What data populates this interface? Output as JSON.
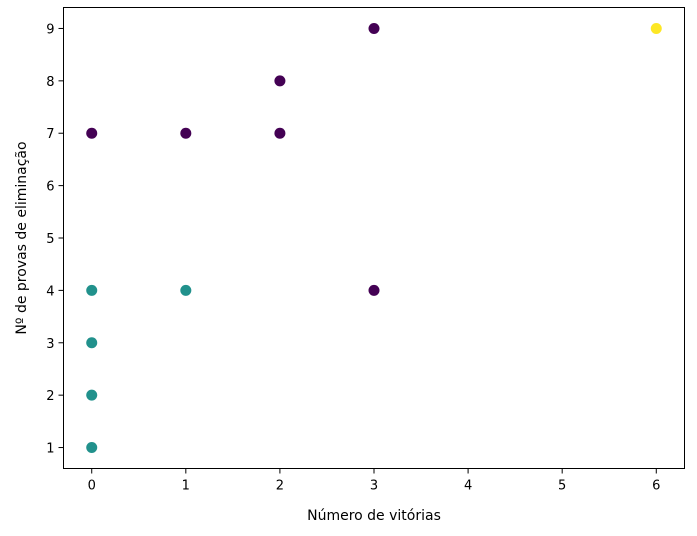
{
  "chart_data": {
    "type": "scatter",
    "xlabel": "Número de vitórias",
    "ylabel": "Nº de provas de eliminação",
    "xlim": [
      -0.3,
      6.3
    ],
    "ylim": [
      0.6,
      9.4
    ],
    "xticks": [
      0,
      1,
      2,
      3,
      4,
      5,
      6
    ],
    "yticks": [
      1,
      2,
      3,
      4,
      5,
      6,
      7,
      8,
      9
    ],
    "grid": false,
    "colormap": "viridis",
    "colors": {
      "cluster_0": "#440154",
      "cluster_1": "#21918c",
      "cluster_2": "#fde725"
    },
    "points": [
      {
        "x": 0,
        "y": 7,
        "cluster": 0
      },
      {
        "x": 1,
        "y": 7,
        "cluster": 0
      },
      {
        "x": 2,
        "y": 7,
        "cluster": 0
      },
      {
        "x": 2,
        "y": 8,
        "cluster": 0
      },
      {
        "x": 3,
        "y": 9,
        "cluster": 0
      },
      {
        "x": 3,
        "y": 4,
        "cluster": 0
      },
      {
        "x": 0,
        "y": 4,
        "cluster": 1
      },
      {
        "x": 1,
        "y": 4,
        "cluster": 1
      },
      {
        "x": 0,
        "y": 3,
        "cluster": 1
      },
      {
        "x": 0,
        "y": 2,
        "cluster": 1
      },
      {
        "x": 0,
        "y": 1,
        "cluster": 1
      },
      {
        "x": 6,
        "y": 9,
        "cluster": 2
      }
    ]
  }
}
